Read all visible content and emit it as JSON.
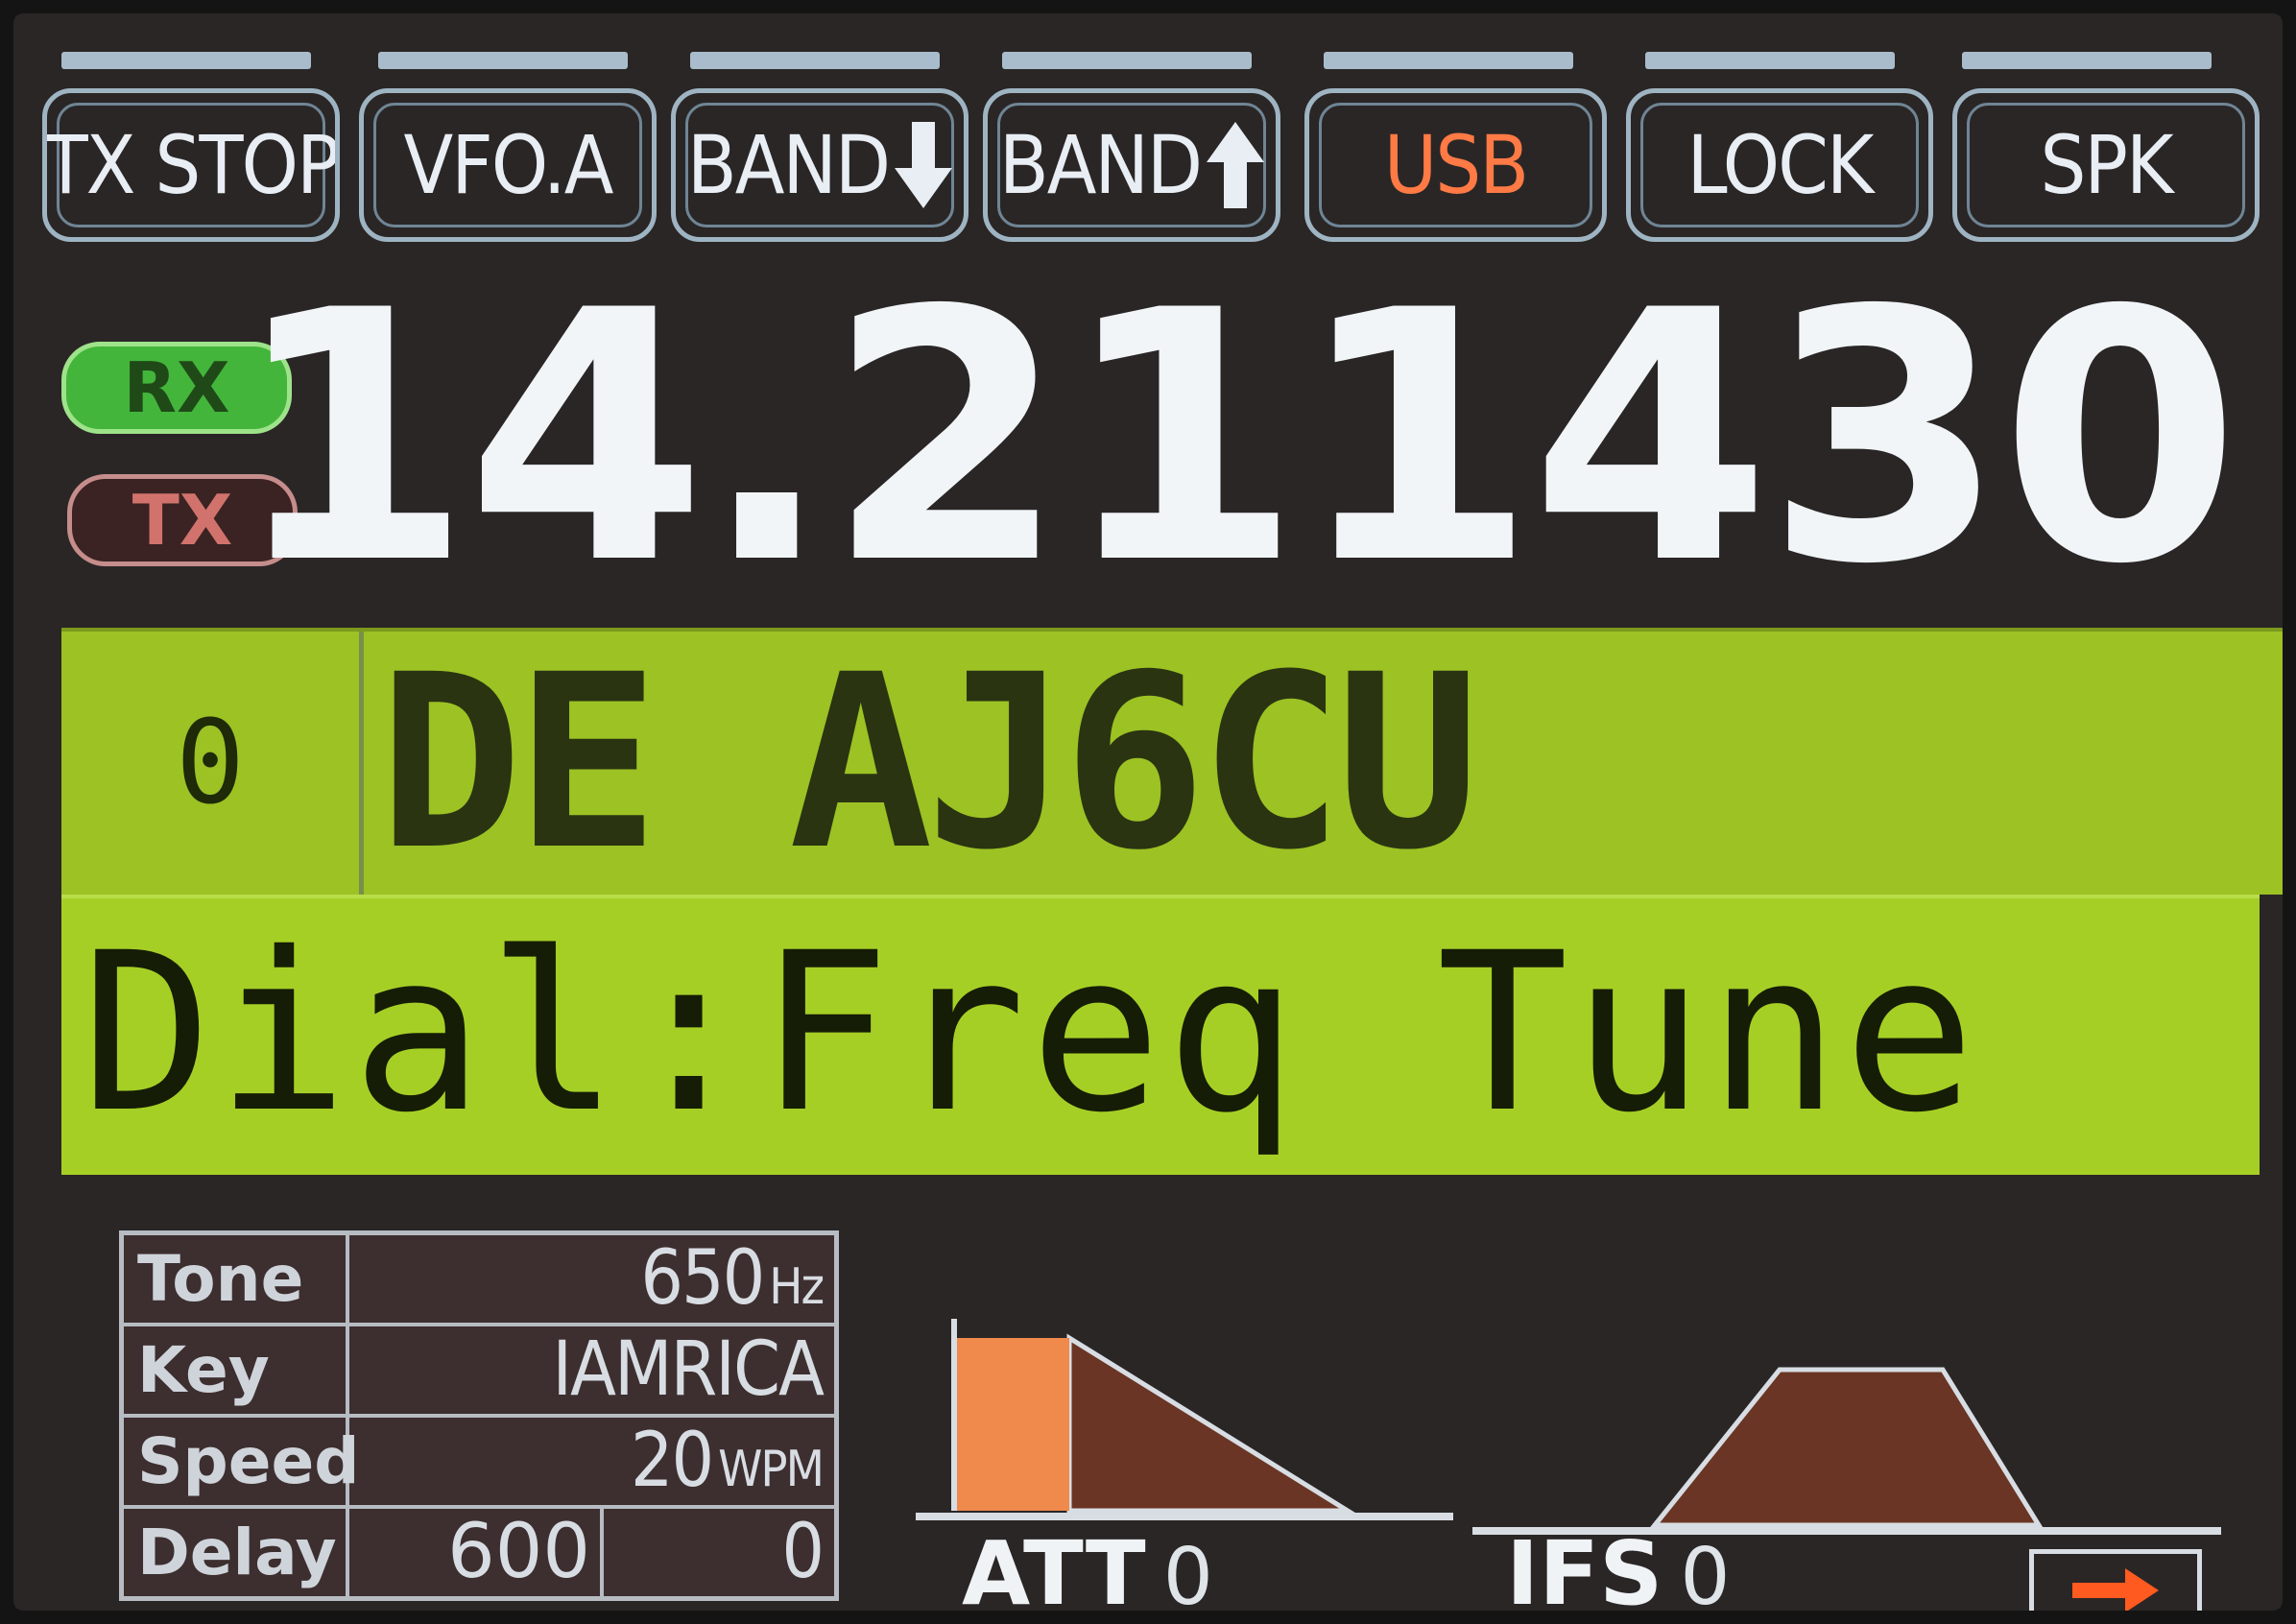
{
  "buttons": [
    {
      "label": "TX STOP",
      "arrow": ""
    },
    {
      "label": "VFO.A",
      "arrow": ""
    },
    {
      "label": "BAND",
      "arrow": "down"
    },
    {
      "label": "BAND",
      "arrow": "up"
    },
    {
      "label": "USB",
      "arrow": ""
    },
    {
      "label": "LOCK",
      "arrow": ""
    },
    {
      "label": "SPK",
      "arrow": ""
    }
  ],
  "status": {
    "rx": "RX",
    "tx": "TX"
  },
  "frequency": "14.211430",
  "decoder": {
    "index": "0",
    "text": "DE AJ6CU"
  },
  "dial": "Dial:Freq Tune",
  "info": {
    "tone_label": "Tone",
    "tone_value": "650",
    "tone_unit": "Hz",
    "key_label": "Key",
    "key_value": "IAMRICA",
    "speed_label": "Speed",
    "speed_value": "20",
    "speed_unit": "WPM",
    "delay_label": "Delay",
    "delay_value": "600",
    "delay_value2": "0"
  },
  "filters": {
    "att_label": "ATT",
    "att_value": "0",
    "ifs_label": "IFS",
    "ifs_value": "0"
  },
  "colors": {
    "usb": "#ff7a45",
    "rx_bg": "#43b53b",
    "tx_text": "#d1736c",
    "lcd_green": "#a6cf26",
    "att_bar": "#ef8a4c",
    "filter_fill": "#6a3524",
    "arrow": "#ff5a1f"
  },
  "icons": [
    "arrow-down-icon",
    "arrow-up-icon",
    "arrow-right-icon"
  ]
}
